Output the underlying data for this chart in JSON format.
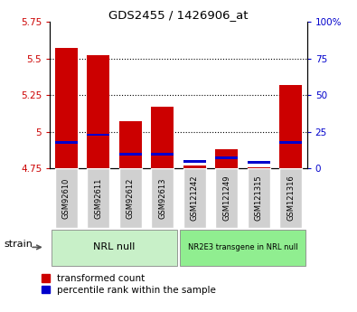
{
  "title": "GDS2455 / 1426906_at",
  "categories": [
    "GSM92610",
    "GSM92611",
    "GSM92612",
    "GSM92613",
    "GSM121242",
    "GSM121249",
    "GSM121315",
    "GSM121316"
  ],
  "red_values": [
    5.57,
    5.52,
    5.07,
    5.17,
    4.77,
    4.88,
    4.76,
    5.32
  ],
  "blue_values_pct": [
    18,
    23,
    10,
    10,
    5,
    7,
    4,
    18
  ],
  "ylim_left": [
    4.75,
    5.75
  ],
  "ylim_right": [
    0,
    100
  ],
  "yticks_left": [
    4.75,
    5.0,
    5.25,
    5.5,
    5.75
  ],
  "yticks_right": [
    0,
    25,
    50,
    75,
    100
  ],
  "ytick_labels_left": [
    "4.75",
    "5",
    "5.25",
    "5.5",
    "5.75"
  ],
  "ytick_labels_right": [
    "0",
    "25",
    "50",
    "75",
    "100%"
  ],
  "bar_bottom": 4.75,
  "group1_label": "NRL null",
  "group2_label": "NR2E3 transgene in NRL null",
  "group1_indices": [
    0,
    1,
    2,
    3
  ],
  "group2_indices": [
    4,
    5,
    6,
    7
  ],
  "group1_color": "#c8f0c8",
  "group2_color": "#90ee90",
  "strain_label": "strain",
  "legend1_label": "transformed count",
  "legend2_label": "percentile rank within the sample",
  "red_color": "#cc0000",
  "blue_color": "#0000cc",
  "tick_label_bg": "#d0d0d0",
  "bar_width": 0.7,
  "dotted_lines": [
    5.0,
    5.25,
    5.5
  ],
  "fig_width": 3.95,
  "fig_height": 3.45
}
